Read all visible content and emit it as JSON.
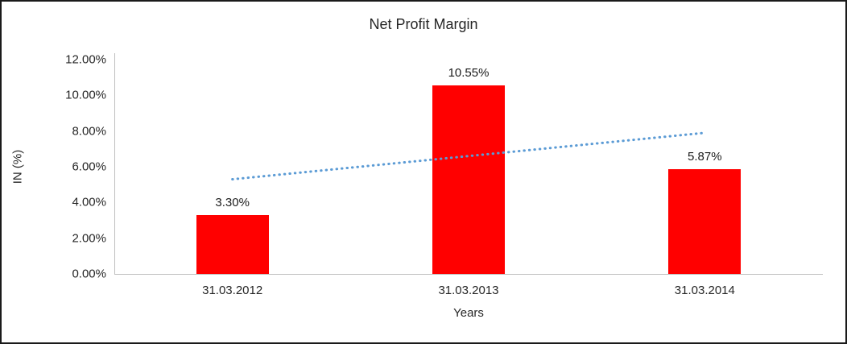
{
  "chart_data": {
    "type": "bar",
    "title": "Net Profit Margin",
    "xlabel": "Years",
    "ylabel": "IN (%)",
    "categories": [
      "31.03.2012",
      "31.03.2013",
      "31.03.2014"
    ],
    "values": [
      3.3,
      10.55,
      5.87
    ],
    "value_labels": [
      "3.30%",
      "10.55%",
      "5.87%"
    ],
    "ylim": [
      0,
      12
    ],
    "ytick_step": 2,
    "ytick_labels": [
      "0.00%",
      "2.00%",
      "4.00%",
      "6.00%",
      "8.00%",
      "10.00%",
      "12.00%"
    ],
    "grid": false,
    "legend": "none",
    "bar_color": "#ff0000",
    "axis_color": "#bfbfbf",
    "text_color": "#262626",
    "trendline": {
      "style": "dotted",
      "color": "#5b9bd5",
      "start_value": 5.3,
      "end_value": 7.9
    }
  }
}
